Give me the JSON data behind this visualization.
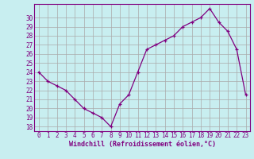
{
  "x": [
    0,
    1,
    2,
    3,
    4,
    5,
    6,
    7,
    8,
    9,
    10,
    11,
    12,
    13,
    14,
    15,
    16,
    17,
    18,
    19,
    20,
    21,
    22,
    23
  ],
  "y": [
    24,
    23,
    22.5,
    22,
    21,
    20,
    19.5,
    19,
    18,
    20.5,
    21.5,
    24,
    26.5,
    27,
    27.5,
    28,
    29,
    29.5,
    30,
    31,
    29.5,
    28.5,
    26.5,
    21.5
  ],
  "line_color": "#800080",
  "marker": "+",
  "marker_color": "#800080",
  "bg_color": "#c8eef0",
  "grid_color": "#aaaaaa",
  "xlabel": "Windchill (Refroidissement éolien,°C)",
  "xlabel_color": "#800080",
  "tick_color": "#800080",
  "ylim": [
    17.5,
    31.5
  ],
  "xlim": [
    -0.5,
    23.5
  ],
  "yticks": [
    18,
    19,
    20,
    21,
    22,
    23,
    24,
    25,
    26,
    27,
    28,
    29,
    30
  ],
  "xticks": [
    0,
    1,
    2,
    3,
    4,
    5,
    6,
    7,
    8,
    9,
    10,
    11,
    12,
    13,
    14,
    15,
    16,
    17,
    18,
    19,
    20,
    21,
    22,
    23
  ],
  "spine_color": "#800080",
  "font_size_tick": 5.5,
  "font_size_xlabel": 6.0
}
